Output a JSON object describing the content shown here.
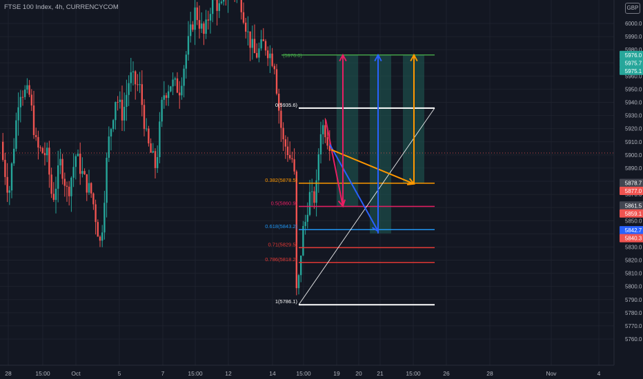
{
  "header": {
    "symbol_title": "FTSE 100 Index, 4h, CURRENCYCOM",
    "currency": "GBP"
  },
  "chart_data": {
    "type": "candlestick",
    "title": "FTSE 100 Index, 4h, CURRENCYCOM",
    "currency": "GBP",
    "ylim": [
      5755,
      6015
    ],
    "y_ticks": [
      5760,
      5770,
      5780,
      5790,
      5800,
      5810,
      5820,
      5830,
      5840,
      5850,
      5860,
      5870,
      5880,
      5890,
      5900,
      5910,
      5920,
      5930,
      5940,
      5950,
      5960,
      5970,
      5980,
      5990,
      6000
    ],
    "x_ticks": [
      "28",
      "15:00",
      "Oct",
      "5",
      "7",
      "15:00",
      "12",
      "14",
      "15:00",
      "19",
      "20",
      "21",
      "15:00",
      "26",
      "28",
      "Nov",
      "4"
    ],
    "colors": {
      "up": "#26a69a",
      "down": "#ef5350",
      "background": "#131722"
    },
    "candles": [],
    "fibonacci": [
      {
        "label": "0(5935.6)",
        "level": 5935.6,
        "color": "#ffffff"
      },
      {
        "label": "0.382(5878.5)",
        "level": 5878.5,
        "color": "#ff9800"
      },
      {
        "label": "0.5(5860.9)",
        "level": 5860.9,
        "color": "#e91e63"
      },
      {
        "label": "0.618(5843.2)",
        "level": 5843.2,
        "color": "#2196f3"
      },
      {
        "label": "0.71(5829.5)",
        "level": 5829.5,
        "color": "#e53935"
      },
      {
        "label": "0.786(5818.2)",
        "level": 5818.2,
        "color": "#e53935"
      },
      {
        "label": "1(5786.1)",
        "level": 5786.1,
        "color": "#ffffff"
      }
    ],
    "target_line": {
      "label": "(5976.0)",
      "level": 5976.0,
      "color": "#43a047"
    },
    "current_price": 5901.5,
    "price_badges": [
      {
        "text": "5976.0",
        "value": 5976.0,
        "color": "#26a69a"
      },
      {
        "text": "5975.7",
        "value": 5975.7,
        "color": "#26a69a"
      },
      {
        "text": "5975.1",
        "value": 5975.1,
        "color": "#26a69a"
      },
      {
        "text": "5878.7",
        "value": 5878.7,
        "color": "#434651"
      },
      {
        "text": "5877.0",
        "value": 5877.0,
        "color": "#ef5350"
      },
      {
        "text": "5861.5",
        "value": 5861.5,
        "color": "#434651"
      },
      {
        "text": "5859.1",
        "value": 5859.1,
        "color": "#ef5350"
      },
      {
        "text": "5842.7",
        "value": 5842.7,
        "color": "#2962ff"
      },
      {
        "text": "5840.3",
        "value": 5840.3,
        "color": "#ef5350"
      }
    ],
    "projection_boxes": [
      {
        "top": 5976.0,
        "bottom": 5860.9
      },
      {
        "top": 5976.0,
        "bottom": 5840.3
      },
      {
        "top": 5976.0,
        "bottom": 5878.5
      }
    ],
    "arrows": [
      {
        "color": "#e91e63",
        "from": 5927,
        "to": 5861
      },
      {
        "color": "#2962ff",
        "from": 5908,
        "to": 5842
      },
      {
        "color": "#ff9800",
        "from": 5904,
        "to": 5878
      },
      {
        "color": "#e91e63",
        "from": 5860.9,
        "to": 5976.0
      },
      {
        "color": "#2962ff",
        "from": 5840.3,
        "to": 5976.0
      },
      {
        "color": "#ff9800",
        "from": 5878.5,
        "to": 5976.0
      }
    ]
  }
}
